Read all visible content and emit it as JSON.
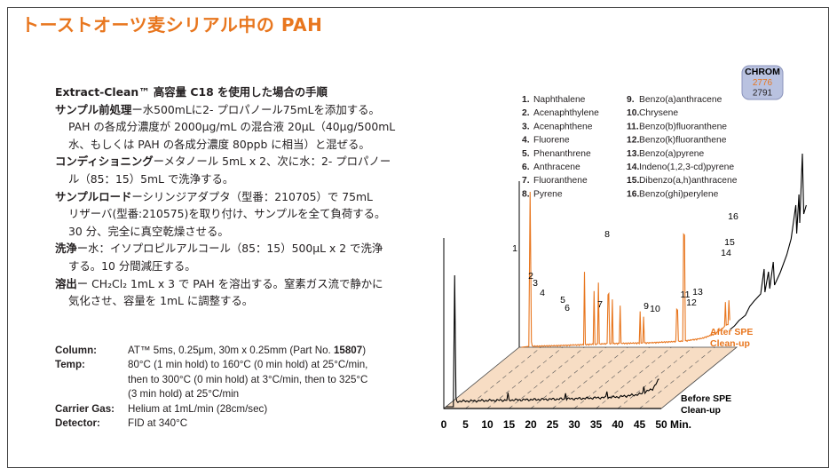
{
  "title": "トーストオーツ麦シリアル中の PAH",
  "method": {
    "heading": "Extract-Clean™ 高容量 C18 を使用した場合の手順",
    "lines": [
      {
        "label": "サンプル前処理",
        "text": "ー水500mLに2- プロパノール75mLを添加する。"
      },
      {
        "label": "",
        "text": "PAH の各成分濃度が 2000μg/mL の混合液 20μL（40μg/500mL"
      },
      {
        "label": "",
        "text": "水、もしくは PAH の各成分濃度 80ppb に相当）と混ぜる。"
      },
      {
        "label": "コンディショニング",
        "text": "ーメタノール 5mL x 2、次に水：2- プロパノー"
      },
      {
        "label": "",
        "text": "ル（85：15）5mL で洗浄する。"
      },
      {
        "label": "サンプルロード",
        "text": "ーシリンジアダプタ（型番：210705）で 75mL"
      },
      {
        "label": "",
        "text": "リザーバ(型番:210575)を取り付け、サンプルを全て負荷する。"
      },
      {
        "label": "",
        "text": "30 分、完全に真空乾燥させる。"
      },
      {
        "label": "洗浄",
        "text": "ー水：イソプロピルアルコール（85：15）500μL x 2 で洗浄"
      },
      {
        "label": "",
        "text": "する。10 分間減圧する。"
      },
      {
        "label": "溶出",
        "text": "ー CH₂Cl₂ 1mL x 3 で PAH を溶出する。窒素ガス流で静かに"
      },
      {
        "label": "",
        "text": "気化させ、容量を 1mL に調整する。"
      }
    ]
  },
  "conditions": [
    {
      "label": "Column:",
      "lines": [
        "AT™ 5ms, 0.25μm, 30m x 0.25mm (Part No. ",
        "15807",
        ")"
      ]
    },
    {
      "label": "Temp:",
      "lines": [
        "80°C (1 min hold) to 160°C (0 min hold) at 25°C/min,",
        "then to 300°C (0 min hold) at 3°C/min, then to 325°C",
        "(3 min hold) at 25°C/min"
      ]
    },
    {
      "label": "Carrier Gas:",
      "lines": [
        "Helium at 1mL/min (28cm/sec)"
      ]
    },
    {
      "label": "Detector:",
      "lines": [
        "FID at 340°C"
      ]
    }
  ],
  "chrom_badge": {
    "label": "CHROM",
    "numbers": [
      "2776",
      "2791"
    ],
    "colors": [
      "#e8761e",
      "#231f20"
    ]
  },
  "colors": {
    "accent": "#e8761e",
    "after": "#e8761e",
    "before": "#000000",
    "floor": "#f7ddc4"
  },
  "chart_data": {
    "type": "line",
    "xlabel": "Min.",
    "x_ticks": [
      0,
      5,
      10,
      15,
      20,
      25,
      30,
      35,
      40,
      45,
      50
    ],
    "xlim": [
      0,
      50
    ],
    "legend": [
      {
        "number": 1,
        "name": "Naphthalene"
      },
      {
        "number": 2,
        "name": "Acenaphthylene"
      },
      {
        "number": 3,
        "name": "Acenaphthene"
      },
      {
        "number": 4,
        "name": "Fluorene"
      },
      {
        "number": 5,
        "name": "Phenanthrene"
      },
      {
        "number": 6,
        "name": "Anthracene"
      },
      {
        "number": 7,
        "name": "Fluoranthene"
      },
      {
        "number": 8,
        "name": "Pyrene"
      },
      {
        "number": 9,
        "name": "Benzo(a)anthracene"
      },
      {
        "number": 10,
        "name": "Chrysene"
      },
      {
        "number": 11,
        "name": "Benzo(b)fluoranthene"
      },
      {
        "number": 12,
        "name": "Benzo(k)fluoranthene"
      },
      {
        "number": 13,
        "name": "Benzo(a)pyrene"
      },
      {
        "number": 14,
        "name": "Indeno(1,2,3-cd)pyrene"
      },
      {
        "number": 15,
        "name": "Dibenzo(a,h)anthracene"
      },
      {
        "number": 16,
        "name": "Benzo(ghi)perylene"
      }
    ],
    "series": [
      {
        "name": "After SPE Clean-up",
        "baseline": [
          [
            2.5,
            0
          ],
          [
            10,
            1
          ],
          [
            20,
            3
          ],
          [
            30,
            4
          ],
          [
            38,
            6
          ],
          [
            42,
            9
          ],
          [
            45,
            14
          ],
          [
            48,
            25
          ],
          [
            50,
            48
          ]
        ],
        "peaks": [
          {
            "label": "1",
            "x": 14.8,
            "h": 82
          },
          {
            "label": "2",
            "x": 20.3,
            "h": 56
          },
          {
            "label": "3",
            "x": 21.2,
            "h": 50
          },
          {
            "label": "4",
            "x": 23.0,
            "h": 43
          },
          {
            "label": "5",
            "x": 27.5,
            "h": 35
          },
          {
            "label": "6",
            "x": 28.3,
            "h": 30
          },
          {
            "label": "7",
            "x": 36.0,
            "h": 36
          },
          {
            "label": "8",
            "x": 37.6,
            "h": 120
          },
          {
            "label": "9",
            "x": 47.2,
            "h": 28
          },
          {
            "label": "10",
            "x": 48.0,
            "h": 24
          },
          {
            "label": "11",
            "x": 56.0,
            "h": 35
          },
          {
            "label": "12",
            "x": 57.0,
            "h": 26
          },
          {
            "label": "13",
            "x": 58.0,
            "h": 34
          },
          {
            "label": "14",
            "x": 63.5,
            "h": 78
          },
          {
            "label": "15",
            "x": 64.2,
            "h": 85
          },
          {
            "label": "16",
            "x": 65.0,
            "h": 130
          }
        ]
      },
      {
        "name": "Before SPE Clean-up",
        "baseline": [
          [
            2.5,
            0
          ],
          [
            10,
            1
          ],
          [
            20,
            2
          ],
          [
            30,
            3
          ],
          [
            40,
            5
          ],
          [
            45,
            8
          ],
          [
            48,
            14
          ],
          [
            49.5,
            25
          ]
        ],
        "peaks": []
      }
    ]
  }
}
